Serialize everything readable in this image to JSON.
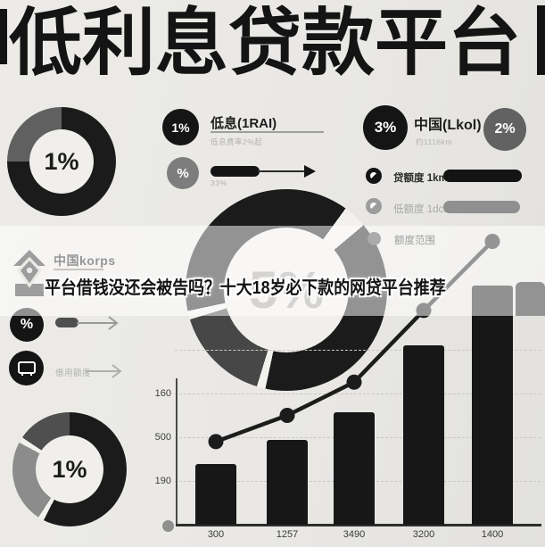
{
  "title": "低利息贷款平台",
  "colors": {
    "ink": "#191919",
    "gray_segment": "#8c8c8c",
    "dark_segment": "#4f4f4f",
    "light_text": "#b3b2b0",
    "band": "rgba(255,255,255,0.53)",
    "bg": "#e9e8e5"
  },
  "top_left_donut": {
    "value": "1%"
  },
  "center_donut": {
    "value": "5%"
  },
  "bottom_left_donut": {
    "value": "1%"
  },
  "low_interest_panel": {
    "badge": "1%",
    "title": "低息(1RAI)",
    "subtitle": "低息费率2%起",
    "percent_badge": "%",
    "rate_label": "33%"
  },
  "china_panel": {
    "badge_primary": "3%",
    "badge_secondary": "2%",
    "title": "中国(Lkol)",
    "subtitle": "约1116km",
    "rows": [
      {
        "label": "贷额度 1km"
      },
      {
        "label": "低额度 1dcd"
      }
    ],
    "legend_label": "额度范围"
  },
  "overlay": {
    "brand": "中国korps",
    "headline": "平台借钱没还会被告吗？十大18岁必下款的网贷平台推荐"
  },
  "left_column": {
    "percent_badge": "%",
    "monitor_label": "借用额度"
  },
  "chart_data": {
    "type": "bar",
    "subtype": "bar+line combo",
    "categories": [
      "300",
      "1257",
      "3490",
      "3200",
      "1400"
    ],
    "series": [
      {
        "name": "bars",
        "type": "bar",
        "values": [
          69,
          97,
          129,
          205,
          273
        ]
      },
      {
        "name": "trend",
        "type": "line",
        "values": [
          95,
          125,
          163,
          245,
          324
        ]
      }
    ],
    "y_tick_labels": [
      "160",
      "500",
      "190"
    ],
    "value_units": "relative units, one gridline interval = 50",
    "xlabel": "",
    "ylabel": "",
    "grid": "dashed horizontal",
    "legend_position": "none"
  }
}
